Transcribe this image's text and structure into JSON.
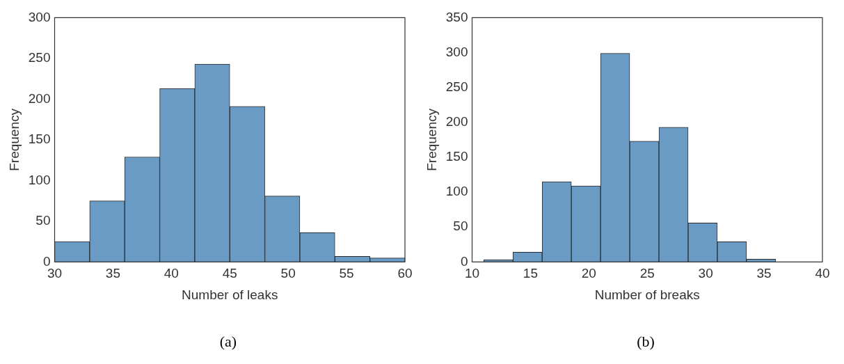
{
  "chart_data": [
    {
      "type": "histogram",
      "xlabel": "Number of leaks",
      "ylabel": "Frequency",
      "color": "#6a9bc5",
      "bins": [
        30,
        33,
        36,
        39,
        42,
        45,
        48,
        51,
        54,
        57,
        60
      ],
      "values": [
        25,
        75,
        129,
        213,
        243,
        191,
        81,
        36,
        7,
        5
      ],
      "xlim": [
        30,
        60
      ],
      "xticks": [
        30,
        35,
        40,
        45,
        50,
        55,
        60
      ],
      "ylim": [
        0,
        300
      ],
      "yticks": [
        0,
        50,
        100,
        150,
        200,
        250,
        300
      ],
      "grid": false,
      "annotations": [
        "(a)"
      ]
    },
    {
      "type": "histogram",
      "xlabel": "Number of breaks",
      "ylabel": "Frequency",
      "color": "#6a9bc5",
      "bins": [
        11,
        13.5,
        16,
        18.5,
        21,
        23.5,
        26,
        28.5,
        31,
        33.5,
        36
      ],
      "values": [
        3,
        14,
        115,
        109,
        299,
        173,
        193,
        56,
        29,
        4
      ],
      "xlim": [
        10,
        40
      ],
      "xticks": [
        10,
        15,
        20,
        25,
        30,
        35,
        40
      ],
      "ylim": [
        0,
        350
      ],
      "yticks": [
        0,
        50,
        100,
        150,
        200,
        250,
        300,
        350
      ],
      "grid": false,
      "annotations": [
        "(b)"
      ]
    }
  ]
}
